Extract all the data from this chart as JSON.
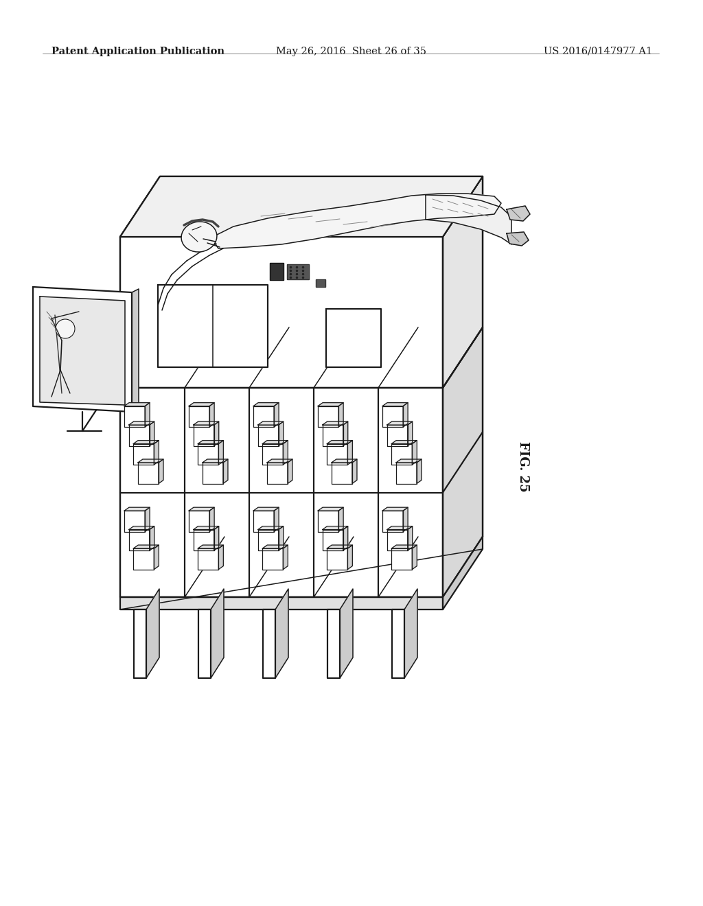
{
  "title_left": "Patent Application Publication",
  "title_center": "May 26, 2016  Sheet 26 of 35",
  "title_right": "US 2016/0147977 A1",
  "fig_label": "FIG. 25",
  "bg_color": "#ffffff",
  "line_color": "#1a1a1a",
  "header_fontsize": 10.5,
  "fig_label_fontsize": 12
}
